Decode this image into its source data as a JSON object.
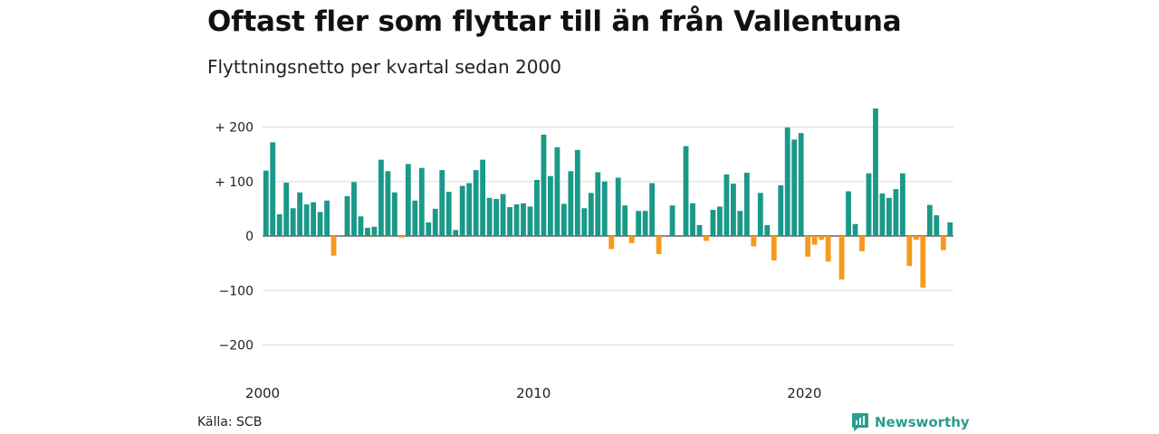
{
  "title": "Oftast fler som flyttar till än från Vallentuna",
  "subtitle": "Flyttningsnetto per kvartal sedan 2000",
  "source": "Källa: SCB",
  "brand": "Newsworthy",
  "colors": {
    "positive": "#1a9988",
    "negative": "#f59a1e",
    "grid": "#dddddd",
    "brand": "#2a9d8f"
  },
  "chart_data": {
    "type": "bar",
    "title": "Flyttningsnetto per kvartal sedan 2000",
    "x_start": "2000 Q1",
    "period": "quarter",
    "x_ticks": [
      "2000",
      "2010",
      "2020"
    ],
    "y_ticks": [
      "+ 200",
      "+ 100",
      "0",
      "−100",
      "−200"
    ],
    "y_tick_values": [
      200,
      100,
      0,
      -100,
      -200
    ],
    "ylim": [
      -210,
      240
    ],
    "grid": true,
    "values": [
      120,
      172,
      40,
      98,
      51,
      80,
      58,
      62,
      44,
      65,
      -36,
      0,
      73,
      99,
      36,
      15,
      17,
      140,
      119,
      80,
      -3,
      132,
      65,
      125,
      25,
      50,
      121,
      81,
      11,
      92,
      97,
      121,
      140,
      70,
      68,
      77,
      53,
      58,
      60,
      54,
      103,
      186,
      110,
      163,
      59,
      119,
      158,
      51,
      79,
      117,
      100,
      -24,
      107,
      56,
      -13,
      46,
      46,
      97,
      -33,
      0,
      56,
      0,
      165,
      60,
      20,
      -9,
      48,
      54,
      113,
      96,
      46,
      116,
      -19,
      79,
      20,
      -45,
      93,
      199,
      177,
      189,
      -38,
      -16,
      -7,
      -47,
      0,
      -80,
      82,
      22,
      -28,
      115,
      234,
      78,
      70,
      86,
      115,
      -55,
      -7,
      -95,
      57,
      38,
      -26,
      25
    ]
  }
}
